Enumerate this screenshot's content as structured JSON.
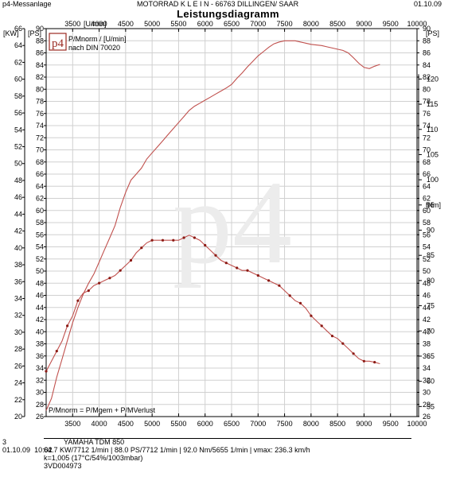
{
  "header": {
    "left": "p4-Messanlage",
    "center": "MOTORRAD  K  L  E  I  N   - 66763 DILLINGEN/  SAAR",
    "right": "01.10.09",
    "title": "Leistungsdiagramm"
  },
  "chart_data": {
    "type": "line",
    "title": "Leistungsdiagramm",
    "x_unit": "[U/min]",
    "x_ticks": [
      3500,
      4000,
      4500,
      5000,
      5500,
      6000,
      6500,
      7000,
      7500,
      8000,
      8500,
      9000,
      9500,
      10000
    ],
    "xlim": [
      3000,
      10000
    ],
    "left_axes": {
      "kw": {
        "unit": "[KW]",
        "ticks": [
          20,
          22,
          24,
          26,
          28,
          30,
          32,
          34,
          36,
          38,
          40,
          42,
          44,
          46,
          48,
          50,
          52,
          54,
          56,
          58,
          60,
          62,
          64,
          66
        ],
        "range": [
          20,
          66
        ]
      },
      "ps": {
        "unit": "[PS]",
        "ticks": [
          26,
          28,
          30,
          32,
          34,
          36,
          38,
          40,
          42,
          44,
          46,
          48,
          50,
          52,
          54,
          56,
          58,
          60,
          62,
          64,
          66,
          68,
          70,
          72,
          74,
          76,
          78,
          80,
          82,
          84,
          86,
          88,
          90
        ],
        "range": [
          26,
          90
        ]
      }
    },
    "right_axes": {
      "ps": {
        "unit": "[PS]",
        "ticks": [
          26,
          28,
          30,
          32,
          34,
          36,
          38,
          40,
          42,
          44,
          46,
          48,
          50,
          52,
          54,
          56,
          58,
          60,
          62,
          64,
          66,
          68,
          70,
          72,
          74,
          76,
          78,
          80,
          82,
          84,
          86,
          88,
          90
        ],
        "range": [
          26,
          90
        ]
      },
      "nm": {
        "unit": "[Nm]",
        "ticks": [
          55,
          60,
          65,
          70,
          75,
          80,
          85,
          90,
          95,
          100,
          105,
          110,
          115,
          120
        ],
        "range": [
          53,
          130
        ]
      }
    },
    "legend": {
      "line1": "P/Mnorm / [U/min]",
      "line2": "nach DIN 70020"
    },
    "formula": "P/Mnorm = P/Mgem + P/MVerlust",
    "logo": "p4",
    "watermark": "p4",
    "series": [
      {
        "axis": "ps",
        "color": "#c0504d",
        "x": [
          3000,
          3100,
          3200,
          3300,
          3400,
          3500,
          3600,
          3700,
          3800,
          3900,
          4000,
          4100,
          4200,
          4300,
          4400,
          4500,
          4600,
          4700,
          4800,
          4900,
          5000,
          5100,
          5200,
          5300,
          5400,
          5500,
          5600,
          5700,
          5800,
          5900,
          6000,
          6100,
          6200,
          6300,
          6400,
          6500,
          6600,
          6700,
          6800,
          6900,
          7000,
          7100,
          7200,
          7300,
          7400,
          7500,
          7600,
          7700,
          7800,
          7900,
          8000,
          8100,
          8200,
          8300,
          8400,
          8500,
          8600,
          8700,
          8800,
          8900,
          9000,
          9100,
          9200,
          9300
        ],
        "y": [
          27,
          29,
          32.5,
          35.5,
          38.5,
          41.5,
          44,
          46.2,
          48,
          49.5,
          51.5,
          53.5,
          55.5,
          57.5,
          60.5,
          63,
          65,
          66,
          67,
          68.5,
          69.5,
          70.5,
          71.5,
          72.5,
          73.5,
          74.5,
          75.5,
          76.5,
          77.2,
          77.7,
          78.2,
          78.7,
          79.2,
          79.7,
          80.2,
          80.8,
          81.8,
          82.7,
          83.7,
          84.6,
          85.5,
          86.2,
          86.9,
          87.5,
          87.8,
          88.0,
          88.0,
          88.0,
          87.8,
          87.6,
          87.4,
          87.3,
          87.2,
          87.0,
          86.8,
          86.6,
          86.4,
          86.0,
          85.2,
          84.3,
          83.6,
          83.4,
          83.8,
          84.1
        ]
      },
      {
        "axis": "nm",
        "color": "#c0504d",
        "x": [
          3000,
          3100,
          3200,
          3300,
          3400,
          3500,
          3600,
          3700,
          3800,
          3900,
          4000,
          4100,
          4200,
          4300,
          4400,
          4500,
          4600,
          4700,
          4800,
          4900,
          5000,
          5100,
          5200,
          5300,
          5400,
          5500,
          5600,
          5700,
          5800,
          5900,
          6000,
          6100,
          6200,
          6300,
          6400,
          6500,
          6600,
          6700,
          6800,
          6900,
          7000,
          7100,
          7200,
          7300,
          7400,
          7500,
          7600,
          7700,
          7800,
          7900,
          8000,
          8100,
          8200,
          8300,
          8400,
          8500,
          8600,
          8700,
          8800,
          8900,
          9000,
          9100,
          9200,
          9300
        ],
        "y": [
          62,
          64,
          66,
          68,
          71,
          73,
          76,
          77.5,
          78,
          79,
          79.5,
          80,
          80.5,
          81,
          82,
          83,
          84,
          85.5,
          86.5,
          87.5,
          88,
          88,
          88,
          88,
          88,
          88,
          88.5,
          89,
          88.5,
          88,
          87,
          86,
          85,
          84,
          83.5,
          83,
          82.5,
          82,
          82,
          81.5,
          81,
          80.5,
          80,
          79.5,
          79,
          78,
          77,
          76,
          75.5,
          74.5,
          73,
          72,
          71,
          70,
          69,
          68.5,
          67.5,
          66.5,
          65.5,
          64.5,
          64,
          64,
          63.8,
          63.5
        ]
      }
    ]
  },
  "footer": {
    "count": "3",
    "vehicle": "YAMAHA TDM 850",
    "date": "01.10.09",
    "time": "10:02",
    "stats": "64.7 KW/7712 1/min  |  88.0 PS/7712 1/min  |  92.0 Nm/5655 1/min  |  vmax: 236.3 km/h",
    "k": "k=1,005 (17°C/54%/1003mbar)",
    "id": "3VD004973"
  }
}
